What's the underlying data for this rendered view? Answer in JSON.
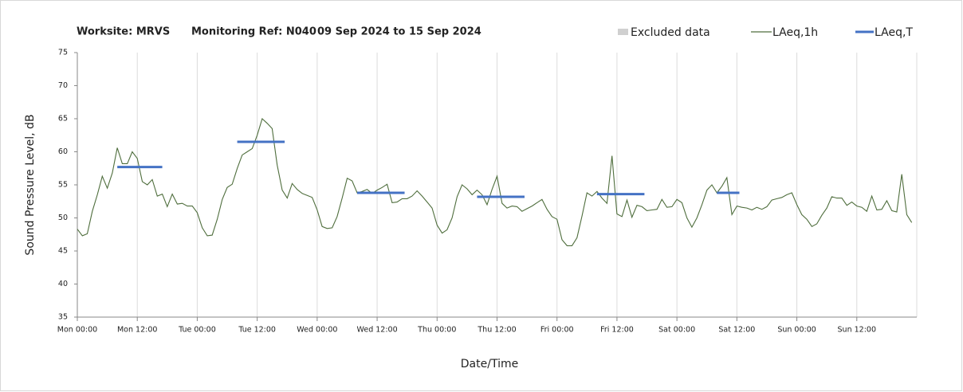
{
  "chart_data": {
    "type": "line",
    "title_parts": [
      "Worksite: MRVS",
      "Monitoring Ref: N040",
      "09 Sep 2024 to 15 Sep 2024"
    ],
    "xlabel": "Date/Time",
    "ylabel": "Sound Pressure Level, dB",
    "xlim": [
      0,
      168
    ],
    "ylim": [
      35,
      75
    ],
    "yticks": [
      35,
      40,
      45,
      50,
      55,
      60,
      65,
      70,
      75
    ],
    "xticks": [
      {
        "value": 0,
        "label": "Mon 00:00"
      },
      {
        "value": 12,
        "label": "Mon 12:00"
      },
      {
        "value": 24,
        "label": "Tue 00:00"
      },
      {
        "value": 36,
        "label": "Tue 12:00"
      },
      {
        "value": 48,
        "label": "Wed 00:00"
      },
      {
        "value": 60,
        "label": "Wed 12:00"
      },
      {
        "value": 72,
        "label": "Thu 00:00"
      },
      {
        "value": 84,
        "label": "Thu 12:00"
      },
      {
        "value": 96,
        "label": "Fri 00:00"
      },
      {
        "value": 108,
        "label": "Fri 12:00"
      },
      {
        "value": 120,
        "label": "Sat 00:00"
      },
      {
        "value": 132,
        "label": "Sat 12:00"
      },
      {
        "value": 144,
        "label": "Sun 00:00"
      },
      {
        "value": 156,
        "label": "Sun 12:00"
      }
    ],
    "grid": "x",
    "legend": "top-right",
    "series": [
      {
        "name": "Excluded data",
        "color": "#d0d0d0",
        "x": [],
        "values": []
      },
      {
        "name": "LAeq,1h",
        "color": "#4f6e3d",
        "x": [
          0,
          1,
          2,
          3,
          4,
          5,
          6,
          7,
          8,
          9,
          10,
          11,
          12,
          13,
          14,
          15,
          16,
          17,
          18,
          19,
          20,
          21,
          22,
          23,
          24,
          25,
          26,
          27,
          28,
          29,
          30,
          31,
          32,
          33,
          34,
          35,
          36,
          37,
          38,
          39,
          40,
          41,
          42,
          43,
          44,
          45,
          46,
          47,
          48,
          49,
          50,
          51,
          52,
          53,
          54,
          55,
          56,
          57,
          58,
          59,
          60,
          61,
          62,
          63,
          64,
          65,
          66,
          67,
          68,
          69,
          70,
          71,
          72,
          73,
          74,
          75,
          76,
          77,
          78,
          79,
          80,
          81,
          82,
          83,
          84,
          85,
          86,
          87,
          88,
          89,
          90,
          91,
          92,
          93,
          94,
          95,
          96,
          97,
          98,
          99,
          100,
          101,
          102,
          103,
          104,
          105,
          106,
          107,
          108,
          109,
          110,
          111,
          112,
          113,
          114,
          115,
          116,
          117,
          118,
          119,
          120,
          121,
          122,
          123,
          124,
          125,
          126,
          127,
          128,
          129,
          130,
          131,
          132,
          133,
          134,
          135,
          136,
          137,
          138,
          139,
          140,
          141,
          142,
          143,
          144,
          145,
          146,
          147,
          148,
          149,
          150,
          151,
          152,
          153,
          154,
          155,
          156,
          157,
          158,
          159,
          160,
          161,
          162,
          163,
          164,
          165,
          166,
          167
        ],
        "values": [
          48.3,
          47.3,
          47.6,
          51,
          53.5,
          56.3,
          54.5,
          56.8,
          60.6,
          58.2,
          58.2,
          60,
          59,
          55.5,
          55,
          55.8,
          53.3,
          53.6,
          51.7,
          53.6,
          52.1,
          52.2,
          51.8,
          51.8,
          50.8,
          48.5,
          47.3,
          47.4,
          49.8,
          52.8,
          54.6,
          55.1,
          57.5,
          59.5,
          60,
          60.5,
          62.5,
          65,
          64.3,
          63.5,
          58,
          54.2,
          53,
          55.2,
          54.3,
          53.7,
          53.4,
          53.1,
          51.2,
          48.7,
          48.4,
          48.5,
          50.2,
          53,
          56,
          55.6,
          53.8,
          54,
          54.3,
          53.7,
          54.2,
          54.6,
          55.1,
          52.3,
          52.4,
          52.9,
          52.9,
          53.3,
          54.1,
          53.3,
          52.4,
          51.5,
          48.9,
          47.7,
          48.2,
          50,
          53.2,
          55,
          54.4,
          53.5,
          54.2,
          53.5,
          52,
          54.3,
          56.3,
          52.2,
          51.5,
          51.8,
          51.7,
          51,
          51.4,
          51.8,
          52.3,
          52.8,
          51.3,
          50.2,
          49.8,
          46.7,
          45.8,
          45.8,
          47,
          50.3,
          53.8,
          53.3,
          54,
          53,
          52.2,
          59.4,
          50.6,
          50.2,
          52.7,
          50.1,
          51.9,
          51.7,
          51.1,
          51.2,
          51.3,
          52.8,
          51.6,
          51.7,
          52.8,
          52.3,
          50,
          48.6,
          50,
          52,
          54.2,
          55,
          53.8,
          54.8,
          56.1,
          50.5,
          51.8,
          51.6,
          51.5,
          51.2,
          51.6,
          51.3,
          51.7,
          52.7,
          52.9,
          53.1,
          53.5,
          53.8,
          52,
          50.5,
          49.8,
          48.7,
          49.1,
          50.4,
          51.5,
          53.2,
          53,
          53,
          51.9,
          52.4,
          51.8,
          51.6,
          51,
          53.3,
          51.2,
          51.3,
          52.6,
          51.1,
          50.9,
          56.6,
          50.5,
          49.3
        ]
      },
      {
        "name": "LAeq,T",
        "color": "#4472c4",
        "x_start": [
          8,
          32,
          56,
          80,
          104,
          128
        ],
        "x_end": [
          17,
          41.5,
          65.5,
          89.5,
          113.5,
          132.5
        ],
        "values": [
          57.7,
          61.5,
          53.8,
          53.2,
          53.6,
          53.8
        ]
      }
    ]
  }
}
